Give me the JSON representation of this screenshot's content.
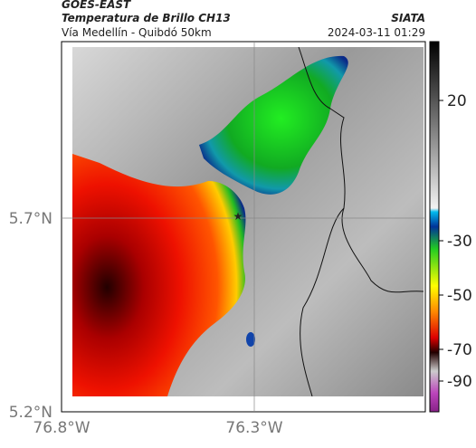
{
  "header": {
    "source": "GOES-EAST",
    "title": "Temperatura de Brillo CH13",
    "brand": "SIATA",
    "route": "Vía Medellín - Quibdó 50km",
    "timestamp": "2024-03-11 01:29"
  },
  "map": {
    "lat_labels": [
      "5.7°N",
      "5.2°N"
    ],
    "lon_labels": [
      "76.8°W",
      "76.3°W"
    ]
  },
  "colorbar": {
    "ticks": [
      20,
      -30,
      -50,
      -70,
      -90
    ]
  }
}
